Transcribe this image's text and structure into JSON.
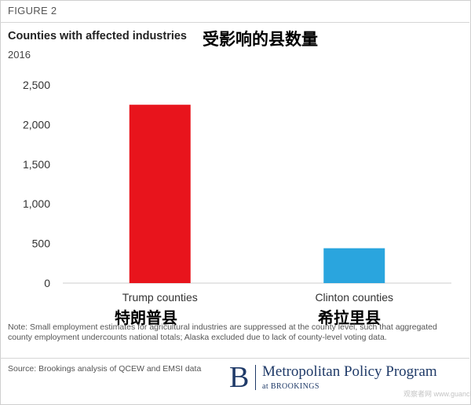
{
  "figure_label": "FIGURE 2",
  "title": "Counties with affected industries",
  "title_cn": "受影响的县数量",
  "subtitle": "2016",
  "chart_data": {
    "type": "bar",
    "title": "Counties with affected industries",
    "subtitle": "2016",
    "categories": [
      "Trump counties",
      "Clinton counties"
    ],
    "categories_cn": [
      "特朗普县",
      "希拉里县"
    ],
    "values": [
      2250,
      440
    ],
    "colors": [
      "#e8141c",
      "#2aa5de"
    ],
    "ylim": [
      0,
      2500
    ],
    "yticks": [
      0,
      500,
      1000,
      1500,
      2000,
      2500
    ],
    "ytick_labels": [
      "0",
      "500",
      "1,000",
      "1,500",
      "2,000",
      "2,500"
    ],
    "grid": false,
    "xlabel": "",
    "ylabel": ""
  },
  "note": "Note: Small employment estimates for agricultural industries are suppressed at the county level, such that aggregated county employment undercounts national totals; Alaska excluded due to lack of county-level voting data.",
  "source": "Source: Brookings analysis of QCEW and EMSI data",
  "brand": {
    "letter": "B",
    "name": "Metropolitan Policy Program",
    "sub": "at BROOKINGS"
  },
  "watermark": "观察者网 www.guancha.cn"
}
